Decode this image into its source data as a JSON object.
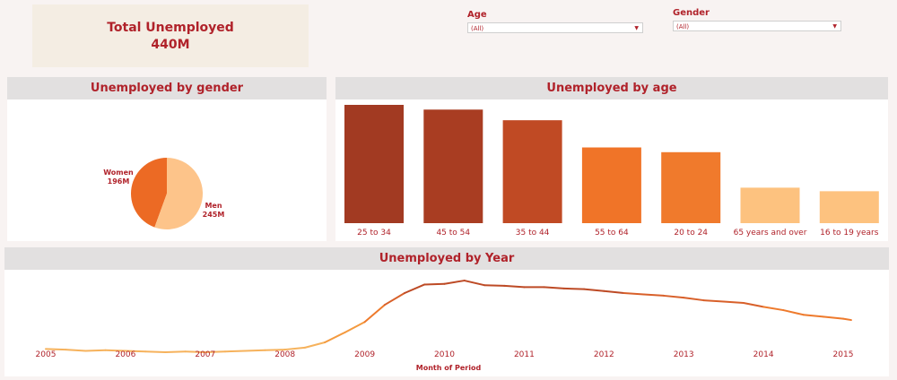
{
  "kpi": {
    "title": "Total Unemployed",
    "value": "440M"
  },
  "filters": {
    "age": {
      "label": "Age",
      "value": "(All)"
    },
    "gender": {
      "label": "Gender",
      "value": "(All)"
    }
  },
  "colors": {
    "dark": "#a23a22",
    "medium": "#c04a24",
    "orange": "#f07428",
    "light": "#fdc27f",
    "text": "#b0222a"
  },
  "chart_data": [
    {
      "type": "pie",
      "title": "Unemployed by gender",
      "slices": [
        {
          "label": "Women",
          "display": "196M",
          "value": 196,
          "color": "#ec6a24"
        },
        {
          "label": "Men",
          "display": "245M",
          "value": 245,
          "color": "#fdc48a"
        }
      ]
    },
    {
      "type": "bar",
      "title": "Unemployed by age",
      "categories": [
        "25 to 34",
        "45 to 54",
        "35 to 44",
        "55 to 64",
        "20 to 24",
        "65 years and over",
        "16 to 19 years"
      ],
      "values": [
        100,
        96,
        87,
        64,
        60,
        30,
        27
      ],
      "colors": [
        "#a23a22",
        "#a93d22",
        "#c04a24",
        "#f07428",
        "#f07a2c",
        "#fdc27f",
        "#fdc27f"
      ]
    },
    {
      "type": "line",
      "title": "Unemployed by Year",
      "xlabel": "Month of Period",
      "ylabel": "",
      "x_ticks": [
        "2005",
        "2006",
        "2007",
        "2008",
        "2009",
        "2010",
        "2011",
        "2012",
        "2013",
        "2014",
        "2015"
      ],
      "x": [
        2005.0,
        2005.25,
        2005.5,
        2005.75,
        2006.0,
        2006.25,
        2006.5,
        2006.75,
        2007.0,
        2007.25,
        2007.5,
        2007.75,
        2008.0,
        2008.25,
        2008.5,
        2008.75,
        2009.0,
        2009.25,
        2009.5,
        2009.75,
        2010.0,
        2010.25,
        2010.5,
        2010.75,
        2011.0,
        2011.25,
        2011.5,
        2011.75,
        2012.0,
        2012.25,
        2012.5,
        2012.75,
        2013.0,
        2013.25,
        2013.5,
        2013.75,
        2014.0,
        2014.25,
        2014.5,
        2014.75,
        2015.0,
        2015.1
      ],
      "values": [
        7.5,
        7.4,
        7.2,
        7.3,
        7.2,
        7.1,
        7.0,
        7.1,
        7.0,
        7.1,
        7.2,
        7.3,
        7.4,
        7.7,
        8.5,
        10.0,
        11.6,
        14.2,
        16.0,
        17.3,
        17.4,
        17.9,
        17.2,
        17.1,
        16.9,
        16.9,
        16.7,
        16.6,
        16.3,
        16.0,
        15.8,
        15.6,
        15.3,
        14.9,
        14.7,
        14.5,
        13.9,
        13.4,
        12.7,
        12.4,
        12.1,
        11.9
      ],
      "ylim": [
        4,
        19
      ]
    }
  ]
}
